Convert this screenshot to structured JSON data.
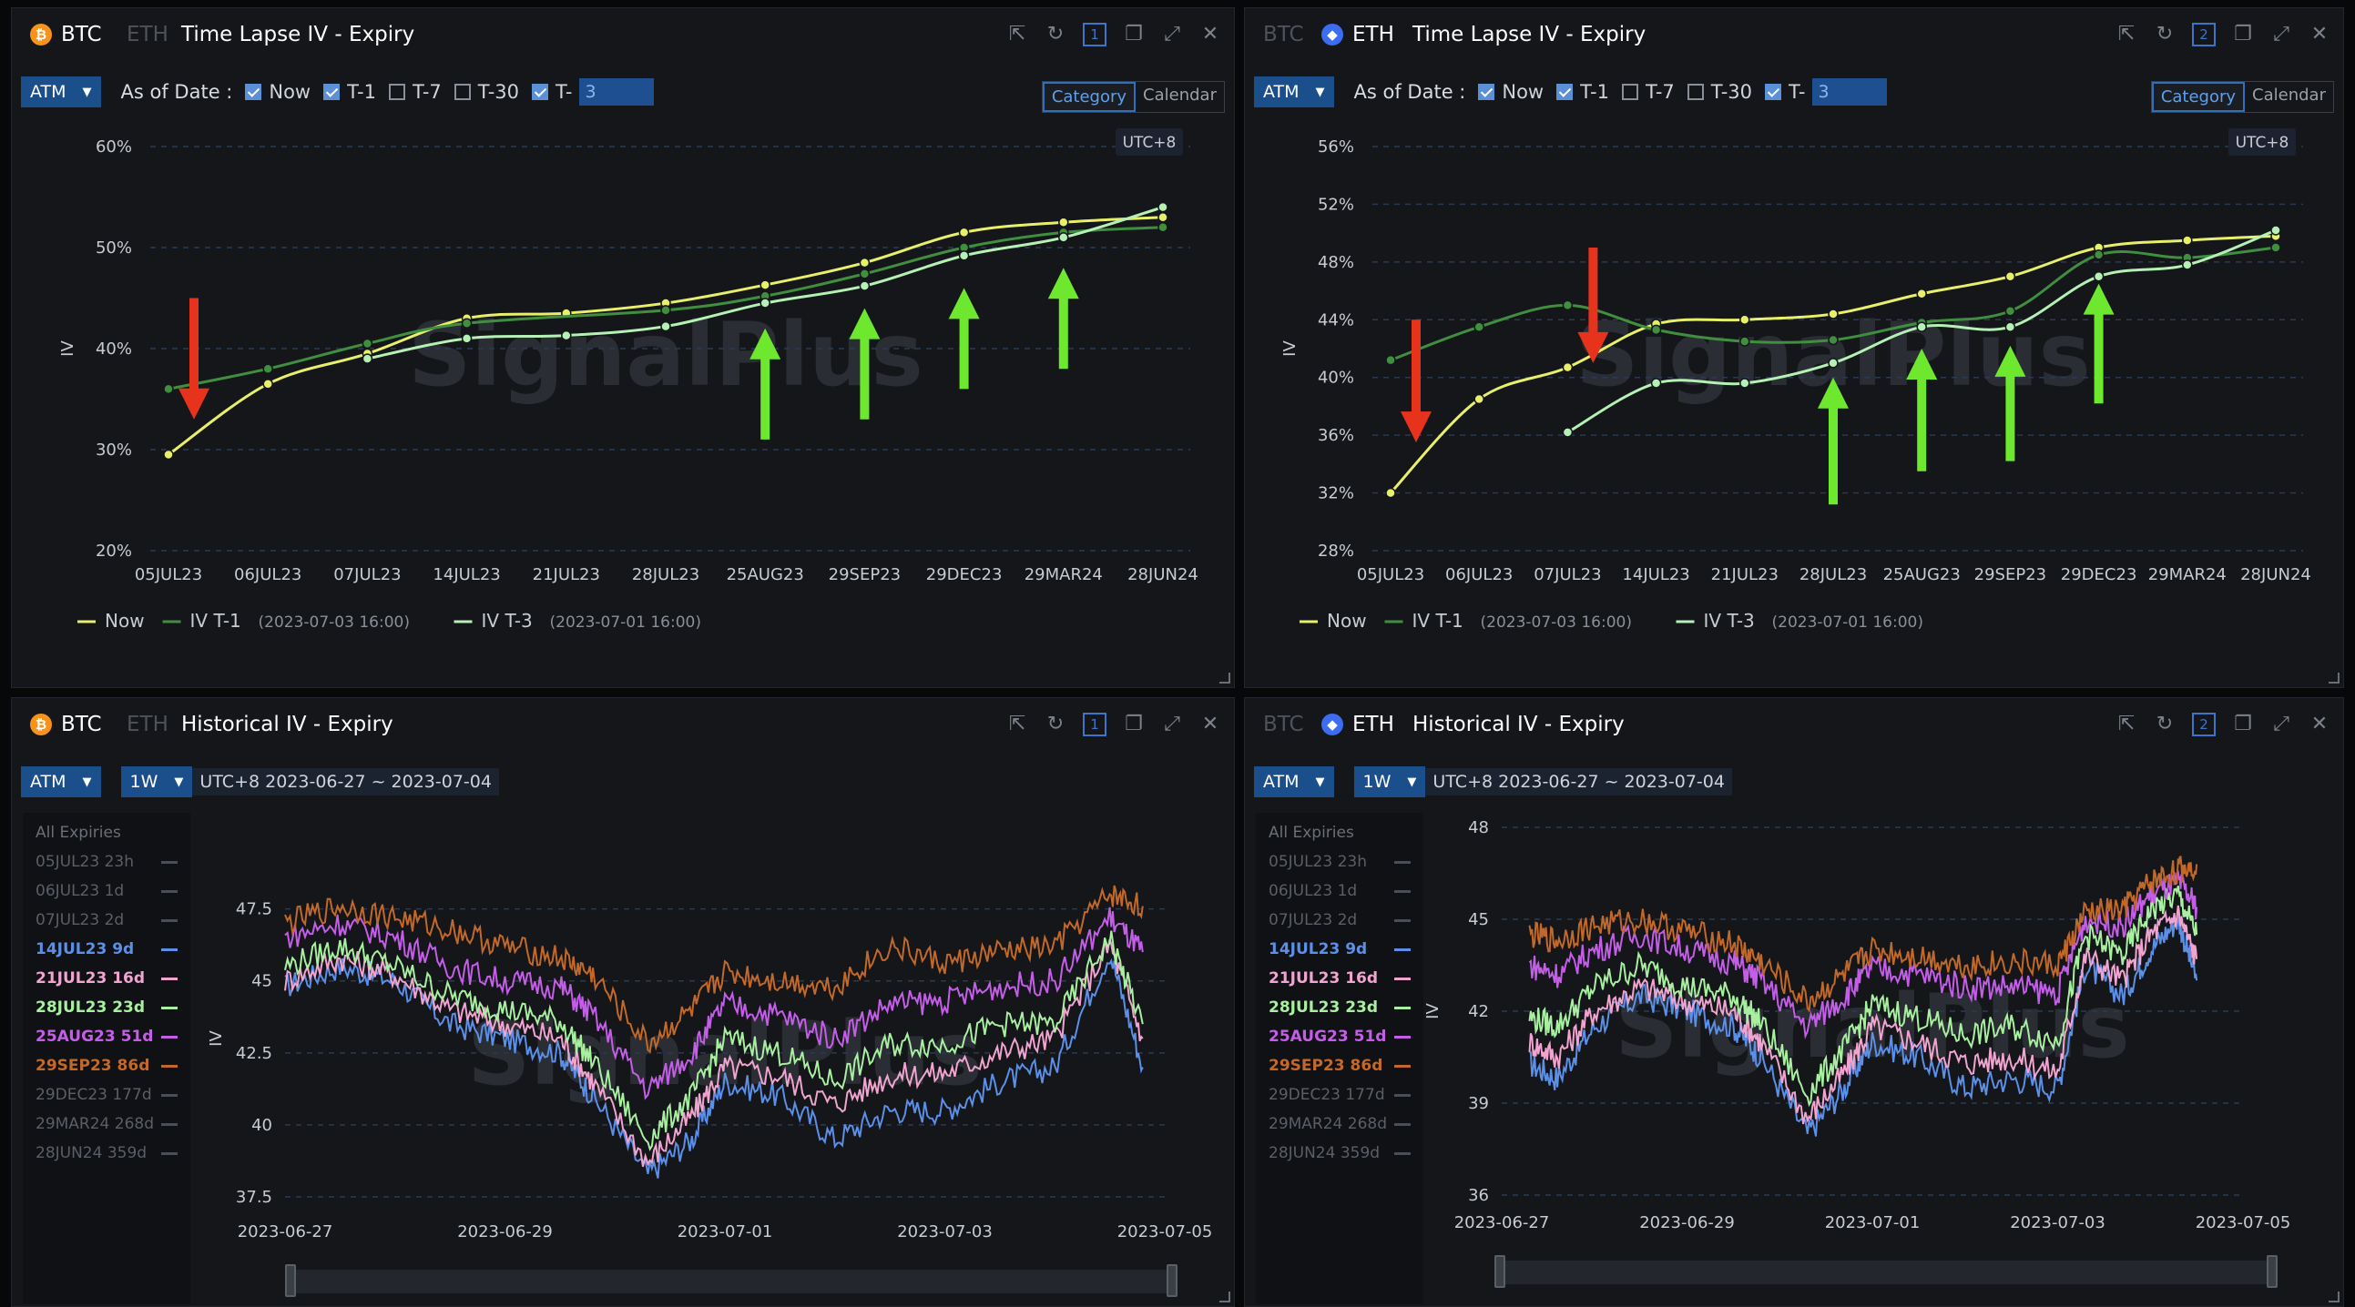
{
  "panels": {
    "tl": {
      "coin_btc": "BTC",
      "coin_eth": "ETH",
      "title": "Time Lapse IV - Expiry",
      "window_num": "1",
      "atm": "ATM",
      "as_of": "As of Date :",
      "now": "Now",
      "t1": "T-1",
      "t7": "T-7",
      "t30": "T-30",
      "tx": "T-",
      "tx_val": "3",
      "seg_category": "Category",
      "seg_calendar": "Calendar",
      "tz": "UTC+8",
      "ylabel": "IV",
      "watermark": "SignalPlus"
    },
    "tr": {
      "coin_btc": "BTC",
      "coin_eth": "ETH",
      "title": "Time Lapse IV - Expiry",
      "window_num": "2",
      "atm": "ATM",
      "as_of": "As of Date :",
      "now": "Now",
      "t1": "T-1",
      "t7": "T-7",
      "t30": "T-30",
      "tx": "T-",
      "tx_val": "3",
      "seg_category": "Category",
      "seg_calendar": "Calendar",
      "tz": "UTC+8",
      "ylabel": "IV",
      "watermark": "SignalPlus"
    },
    "bl": {
      "coin_btc": "BTC",
      "coin_eth": "ETH",
      "title": "Historical IV - Expiry",
      "window_num": "1",
      "atm": "ATM",
      "period": "1W",
      "range": "UTC+8 2023-06-27 ~ 2023-07-04",
      "ylabel": "IV",
      "watermark": "SignalPlus"
    },
    "br": {
      "coin_btc": "BTC",
      "coin_eth": "ETH",
      "title": "Historical IV - Expiry",
      "window_num": "2",
      "atm": "ATM",
      "period": "1W",
      "range": "UTC+8 2023-06-27 ~ 2023-07-04",
      "ylabel": "IV",
      "watermark": "SignalPlus"
    }
  },
  "legend_side": {
    "all": "All Expiries",
    "items": [
      {
        "label": "05JUL23 23h",
        "color": "#4a4f57",
        "active": false
      },
      {
        "label": "06JUL23 1d",
        "color": "#4a4f57",
        "active": false
      },
      {
        "label": "07JUL23 2d",
        "color": "#4a4f57",
        "active": false
      },
      {
        "label": "14JUL23 9d",
        "color": "#5b8fe8",
        "active": true
      },
      {
        "label": "21JUL23 16d",
        "color": "#f0a4cf",
        "active": true
      },
      {
        "label": "28JUL23 23d",
        "color": "#a8f0a0",
        "active": true
      },
      {
        "label": "25AUG23 51d",
        "color": "#c45ee8",
        "active": true
      },
      {
        "label": "29SEP23 86d",
        "color": "#c2692a",
        "active": true
      },
      {
        "label": "29DEC23 177d",
        "color": "#4a4f57",
        "active": false
      },
      {
        "label": "29MAR24 268d",
        "color": "#4a4f57",
        "active": false
      },
      {
        "label": "28JUN24 359d",
        "color": "#4a4f57",
        "active": false
      }
    ]
  },
  "chart_data": [
    {
      "type": "line",
      "id": "btc_timelapse",
      "title": "Time Lapse IV - Expiry",
      "ylabel": "IV",
      "categories": [
        "05JUL23",
        "06JUL23",
        "07JUL23",
        "14JUL23",
        "21JUL23",
        "28JUL23",
        "25AUG23",
        "29SEP23",
        "29DEC23",
        "29MAR24",
        "28JUN24"
      ],
      "yticks": [
        "20%",
        "30%",
        "40%",
        "50%",
        "60%"
      ],
      "ylim": [
        20,
        60
      ],
      "grid": true,
      "legend_position": "bottom-left",
      "series": [
        {
          "name": "Now",
          "legend": "Now",
          "color": "#e8ef6a",
          "values": [
            29.5,
            36.5,
            39.5,
            43,
            43.5,
            44.5,
            46.3,
            48.5,
            51.5,
            52.5,
            53
          ]
        },
        {
          "name": "IV T-1",
          "legend": "IV T-1",
          "stamp": "(2023-07-03 16:00)",
          "color": "#3f8f3f",
          "values": [
            36,
            38,
            40.5,
            42.5,
            null,
            43.8,
            45.2,
            47.4,
            50,
            51.5,
            52
          ]
        },
        {
          "name": "IV T-3",
          "legend": "IV T-3",
          "stamp": "(2023-07-01 16:00)",
          "color": "#b5f0b5",
          "values": [
            null,
            null,
            39,
            41,
            41.3,
            42.2,
            44.5,
            46.2,
            49.2,
            51,
            54
          ]
        }
      ],
      "annotations": [
        {
          "type": "arrow-down",
          "color": "#e8331c",
          "x": "05JUL23",
          "from": 45,
          "to": 33
        },
        {
          "type": "arrow-up",
          "color": "#6ee82e",
          "x": "25AUG23",
          "from": 31,
          "to": 42
        },
        {
          "type": "arrow-up",
          "color": "#6ee82e",
          "x": "29SEP23",
          "from": 33,
          "to": 44
        },
        {
          "type": "arrow-up",
          "color": "#6ee82e",
          "x": "29DEC23",
          "from": 36,
          "to": 46
        },
        {
          "type": "arrow-up",
          "color": "#6ee82e",
          "x": "29MAR24",
          "from": 38,
          "to": 48
        }
      ]
    },
    {
      "type": "line",
      "id": "eth_timelapse",
      "title": "Time Lapse IV - Expiry",
      "ylabel": "IV",
      "categories": [
        "05JUL23",
        "06JUL23",
        "07JUL23",
        "14JUL23",
        "21JUL23",
        "28JUL23",
        "25AUG23",
        "29SEP23",
        "29DEC23",
        "29MAR24",
        "28JUN24"
      ],
      "yticks": [
        "28%",
        "32%",
        "36%",
        "40%",
        "44%",
        "48%",
        "52%",
        "56%"
      ],
      "ylim": [
        28,
        56
      ],
      "grid": true,
      "legend_position": "bottom-left",
      "series": [
        {
          "name": "Now",
          "legend": "Now",
          "color": "#e8ef6a",
          "values": [
            32,
            38.5,
            40.7,
            43.7,
            44,
            44.4,
            45.8,
            47,
            49,
            49.5,
            49.8
          ]
        },
        {
          "name": "IV T-1",
          "legend": "IV T-1",
          "stamp": "(2023-07-03 16:00)",
          "color": "#3f8f3f",
          "values": [
            41.2,
            43.5,
            45,
            43.3,
            42.5,
            42.6,
            43.8,
            44.6,
            48.5,
            48.3,
            49
          ]
        },
        {
          "name": "IV T-3",
          "legend": "IV T-3",
          "stamp": "(2023-07-01 16:00)",
          "color": "#b5f0b5",
          "values": [
            null,
            null,
            36.2,
            39.6,
            39.6,
            41,
            43.5,
            43.5,
            47,
            47.8,
            50.2
          ]
        }
      ],
      "annotations": [
        {
          "type": "arrow-down",
          "color": "#e8331c",
          "x": "05JUL23",
          "from": 44,
          "to": 35.5
        },
        {
          "type": "arrow-down",
          "color": "#e8331c",
          "x": "07JUL23",
          "from": 49,
          "to": 41
        },
        {
          "type": "arrow-up",
          "color": "#6ee82e",
          "x": "28JUL23",
          "from": 31.2,
          "to": 40
        },
        {
          "type": "arrow-up",
          "color": "#6ee82e",
          "x": "25AUG23",
          "from": 33.5,
          "to": 42
        },
        {
          "type": "arrow-up",
          "color": "#6ee82e",
          "x": "29SEP23",
          "from": 34.2,
          "to": 42.2
        },
        {
          "type": "arrow-up",
          "color": "#6ee82e",
          "x": "29DEC23",
          "from": 38.2,
          "to": 46.5
        }
      ]
    },
    {
      "type": "line",
      "id": "btc_historical",
      "title": "Historical IV - Expiry",
      "ylabel": "IV",
      "xticks": [
        "2023-06-27",
        "2023-06-29",
        "2023-07-01",
        "2023-07-03",
        "2023-07-05"
      ],
      "yticks": [
        "37.5",
        "40",
        "42.5",
        "45",
        "47.5"
      ],
      "ylim": [
        37.5,
        48.5
      ],
      "grid": true,
      "series": [
        {
          "name": "14JUL23 9d",
          "color": "#5b8fe8",
          "x": [
            0,
            0.5,
            1,
            1.5,
            2,
            2.5,
            2.8,
            3.3,
            3.7,
            4,
            4.5,
            5,
            5.5,
            6,
            6.5,
            7,
            7.5,
            7.8
          ],
          "values": [
            44.8,
            45.5,
            45,
            43.5,
            43,
            42.5,
            41,
            38.3,
            39.5,
            41.5,
            41,
            39.5,
            40.5,
            40.5,
            41.5,
            42,
            46,
            42
          ]
        },
        {
          "name": "21JUL23 16d",
          "color": "#f0a4cf",
          "x": [
            0,
            0.5,
            1,
            1.5,
            2,
            2.5,
            2.8,
            3.3,
            3.7,
            4,
            4.5,
            5,
            5.5,
            6,
            6.5,
            7,
            7.5,
            7.8
          ],
          "values": [
            45,
            45.8,
            45.2,
            44,
            43.5,
            43,
            41.5,
            38.7,
            40.3,
            42,
            41.7,
            40.7,
            41.7,
            41.8,
            42.5,
            43,
            46.3,
            43
          ]
        },
        {
          "name": "28JUL23 23d",
          "color": "#a8f0a0",
          "x": [
            0,
            0.5,
            1,
            1.5,
            2,
            2.5,
            2.8,
            3.3,
            3.7,
            4,
            4.5,
            5,
            5.5,
            6,
            6.5,
            7,
            7.5,
            7.8
          ],
          "values": [
            45.5,
            46.2,
            45.5,
            44.5,
            44,
            43.6,
            42.2,
            39.5,
            41,
            43,
            42.5,
            41.5,
            42.8,
            42.8,
            43.5,
            43.5,
            46.5,
            43.5
          ]
        },
        {
          "name": "25AUG23 51d",
          "color": "#c45ee8",
          "x": [
            0,
            0.5,
            1,
            1.5,
            2,
            2.5,
            2.8,
            3.3,
            3.7,
            4,
            4.5,
            5,
            5.5,
            6,
            6.5,
            7,
            7.5,
            7.8
          ],
          "values": [
            46.5,
            47,
            46.5,
            45.5,
            45,
            44.8,
            43.8,
            41.2,
            42.5,
            44.2,
            43.8,
            43,
            44.2,
            44.3,
            44.8,
            45,
            47.2,
            46
          ]
        },
        {
          "name": "29SEP23 86d",
          "color": "#c2692a",
          "x": [
            0,
            0.5,
            1,
            1.5,
            2,
            2.5,
            2.8,
            3.3,
            3.7,
            4,
            4.5,
            5,
            5.5,
            6,
            6.5,
            7,
            7.5,
            7.8
          ],
          "values": [
            47,
            47.6,
            47.2,
            46.8,
            46.2,
            45.8,
            45.2,
            42.8,
            44,
            45.3,
            45,
            44.8,
            46.2,
            45.6,
            46,
            46.2,
            48,
            47.6
          ]
        }
      ]
    },
    {
      "type": "line",
      "id": "eth_historical",
      "title": "Historical IV - Expiry",
      "ylabel": "IV",
      "xticks": [
        "2023-06-27",
        "2023-06-29",
        "2023-07-01",
        "2023-07-03",
        "2023-07-05"
      ],
      "yticks": [
        "36",
        "39",
        "42",
        "45",
        "48"
      ],
      "ylim": [
        36,
        48
      ],
      "grid": true,
      "series": [
        {
          "name": "14JUL23 9d",
          "color": "#5b8fe8",
          "x": [
            0.3,
            0.6,
            1,
            1.5,
            2,
            2.5,
            2.8,
            3.3,
            3.7,
            4,
            4.5,
            5,
            5.5,
            6,
            6.3,
            6.7,
            7,
            7.3,
            7.5
          ],
          "values": [
            40.3,
            39.8,
            41.5,
            42.5,
            42,
            41.5,
            40.5,
            38,
            39.5,
            41,
            40.5,
            39.5,
            39.8,
            39.5,
            43.5,
            42.5,
            44,
            45,
            43
          ]
        },
        {
          "name": "21JUL23 16d",
          "color": "#f0a4cf",
          "x": [
            0.3,
            0.6,
            1,
            1.5,
            2,
            2.5,
            2.8,
            3.3,
            3.7,
            4,
            4.5,
            5,
            5.5,
            6,
            6.3,
            6.7,
            7,
            7.3,
            7.5
          ],
          "values": [
            41,
            40.5,
            42,
            42.8,
            42.3,
            42,
            41,
            38.5,
            40,
            41.5,
            41,
            40.3,
            40.5,
            40,
            43.8,
            43,
            44.5,
            45.2,
            43.7
          ]
        },
        {
          "name": "28JUL23 23d",
          "color": "#a8f0a0",
          "x": [
            0.3,
            0.6,
            1,
            1.5,
            2,
            2.5,
            2.8,
            3.3,
            3.7,
            4,
            4.5,
            5,
            5.5,
            6,
            6.3,
            6.7,
            7,
            7.3,
            7.5
          ],
          "values": [
            41.8,
            41.5,
            42.8,
            43.5,
            42.8,
            42.5,
            41.6,
            39.3,
            40.8,
            42.2,
            41.8,
            41.2,
            41.5,
            41,
            44.5,
            43.8,
            45.3,
            45.8,
            44.5
          ]
        },
        {
          "name": "25AUG23 51d",
          "color": "#c45ee8",
          "x": [
            0.3,
            0.6,
            1,
            1.5,
            2,
            2.5,
            2.8,
            3.3,
            3.7,
            4,
            4.5,
            5,
            5.5,
            6,
            6.3,
            6.7,
            7,
            7.3,
            7.5
          ],
          "values": [
            43.5,
            43.2,
            44,
            44.5,
            44,
            43.6,
            43,
            41.5,
            42.5,
            43.4,
            43.2,
            42.8,
            42.8,
            42.6,
            45,
            44.8,
            45.8,
            46.2,
            45.4
          ]
        },
        {
          "name": "29SEP23 86d",
          "color": "#c2692a",
          "x": [
            0.3,
            0.6,
            1,
            1.5,
            2,
            2.5,
            2.8,
            3.3,
            3.7,
            4,
            4.5,
            5,
            5.5,
            6,
            6.3,
            6.7,
            7,
            7.3,
            7.5
          ],
          "values": [
            44.5,
            44.3,
            44.8,
            45,
            44.6,
            44.2,
            43.6,
            42.3,
            43.2,
            44,
            43.8,
            43.5,
            43.6,
            43.5,
            45.2,
            45.3,
            46.2,
            46.6,
            46.8
          ]
        }
      ]
    }
  ]
}
